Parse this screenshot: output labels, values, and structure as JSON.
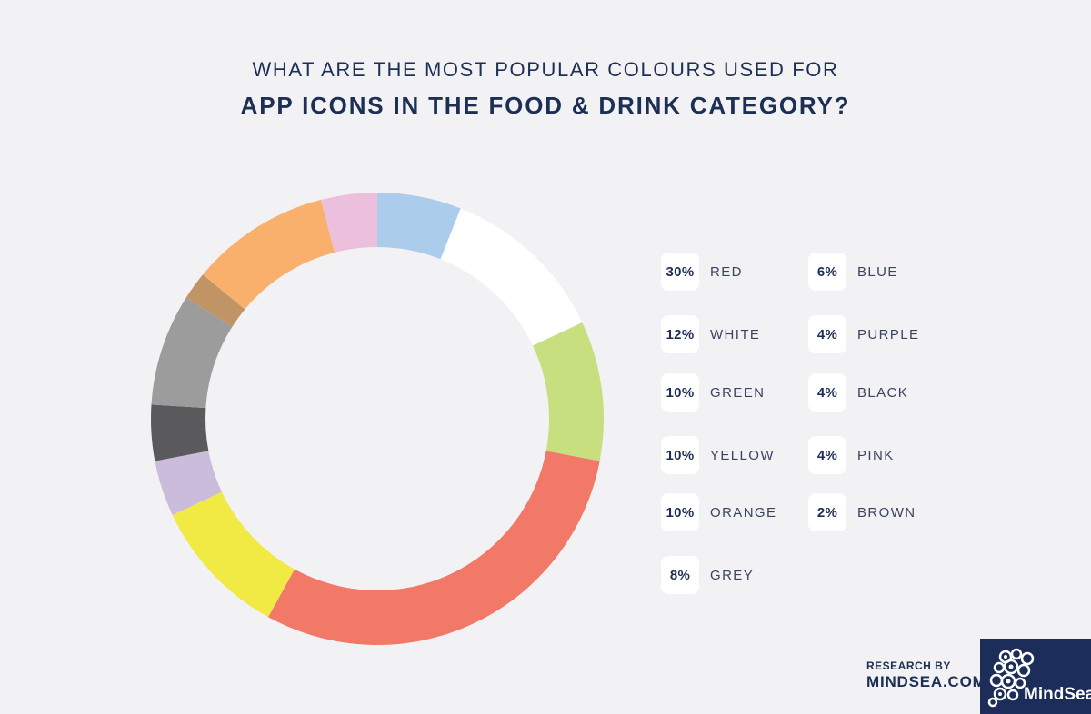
{
  "title": {
    "line1": "WHAT ARE THE MOST POPULAR COLOURS USED FOR",
    "line2": "APP ICONS IN THE FOOD & DRINK CATEGORY?"
  },
  "legend": [
    {
      "pct": "30%",
      "label": "RED"
    },
    {
      "pct": "12%",
      "label": "WHITE"
    },
    {
      "pct": "10%",
      "label": "GREEN"
    },
    {
      "pct": "10%",
      "label": "YELLOW"
    },
    {
      "pct": "10%",
      "label": "ORANGE"
    },
    {
      "pct": "8%",
      "label": "GREY"
    },
    {
      "pct": "6%",
      "label": "BLUE"
    },
    {
      "pct": "4%",
      "label": "PURPLE"
    },
    {
      "pct": "4%",
      "label": "BLACK"
    },
    {
      "pct": "4%",
      "label": "PINK"
    },
    {
      "pct": "2%",
      "label": "BROWN"
    }
  ],
  "footer": {
    "research_by": "RESEARCH BY",
    "site": "MINDSEA.COM",
    "logo_text": "MindSea"
  },
  "chart_data": {
    "type": "pie",
    "title": "WHAT ARE THE MOST POPULAR COLOURS USED FOR APP ICONS IN THE FOOD & DRINK CATEGORY?",
    "legend_position": "right",
    "slices": [
      {
        "label": "BLUE",
        "value": 6,
        "color": "#acccec"
      },
      {
        "label": "WHITE",
        "value": 12,
        "color": "#ffffff"
      },
      {
        "label": "GREEN",
        "value": 10,
        "color": "#c8df80"
      },
      {
        "label": "RED",
        "value": 30,
        "color": "#f27868"
      },
      {
        "label": "YELLOW",
        "value": 10,
        "color": "#f2ea44"
      },
      {
        "label": "PURPLE",
        "value": 4,
        "color": "#cbbcdc"
      },
      {
        "label": "BLACK",
        "value": 4,
        "color": "#5a5a5c"
      },
      {
        "label": "GREY",
        "value": 8,
        "color": "#9c9c9c"
      },
      {
        "label": "BROWN",
        "value": 2,
        "color": "#c09464"
      },
      {
        "label": "ORANGE",
        "value": 10,
        "color": "#f9b06c"
      },
      {
        "label": "PINK",
        "value": 4,
        "color": "#ecc0dc"
      }
    ]
  }
}
